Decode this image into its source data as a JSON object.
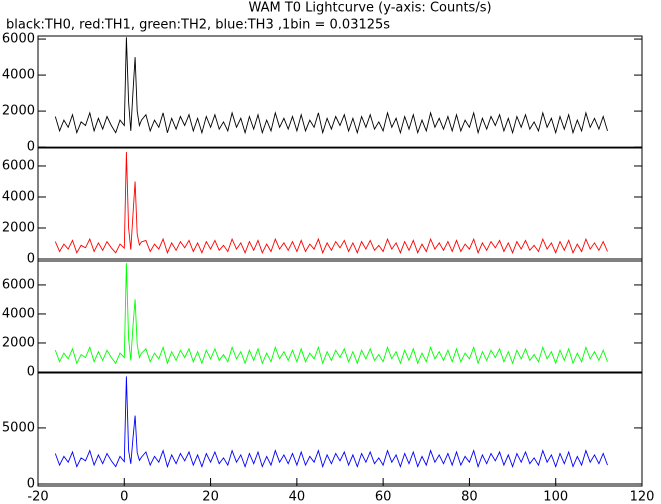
{
  "title": "WAM T0 Lightcurve (y-axis: Counts/s)",
  "subtitle": "black:TH0, red:TH1, green:TH2, blue:TH3 ,1bin = 0.03125s",
  "chart_data": [
    {
      "type": "line",
      "x": [
        -16,
        -15,
        -14,
        -13,
        -12,
        -11,
        -10,
        -9,
        -8,
        -7,
        -6,
        -5,
        -4,
        -3,
        -2,
        -1,
        0,
        0.5,
        1,
        1.5,
        2,
        2.5,
        3,
        3.5,
        4,
        5,
        6,
        7,
        8,
        9,
        10,
        11,
        12,
        13,
        14,
        15,
        16,
        17,
        18,
        19,
        20,
        21,
        22,
        23,
        24,
        25,
        26,
        27,
        28,
        29,
        30,
        31,
        32,
        33,
        34,
        35,
        36,
        37,
        38,
        39,
        40,
        41,
        42,
        43,
        44,
        45,
        46,
        47,
        48,
        49,
        50,
        51,
        52,
        53,
        54,
        55,
        56,
        57,
        58,
        59,
        60,
        61,
        62,
        63,
        64,
        65,
        66,
        67,
        68,
        69,
        70,
        71,
        72,
        73,
        74,
        75,
        76,
        77,
        78,
        79,
        80,
        81,
        82,
        83,
        84,
        85,
        86,
        87,
        88,
        89,
        90,
        91,
        92,
        93,
        94,
        95,
        96,
        97,
        98,
        99,
        100,
        101,
        102,
        103,
        104,
        105,
        106,
        107,
        108,
        109,
        110,
        111,
        112
      ],
      "xlim": [
        -20,
        120
      ],
      "ylim": [
        -50,
        6170
      ],
      "yticks": [
        0,
        2000,
        4000,
        6000
      ],
      "series": [
        {
          "color": "#000000",
          "values": [
            1700,
            900,
            1500,
            1100,
            1800,
            800,
            1400,
            1200,
            1900,
            900,
            1600,
            1000,
            1700,
            1200,
            800,
            1500,
            1200,
            6100,
            2500,
            900,
            3000,
            5000,
            2000,
            1200,
            1500,
            1800,
            900,
            1500,
            1100,
            1900,
            800,
            1600,
            1000,
            1700,
            1200,
            1800,
            900,
            1600,
            800,
            1700,
            1100,
            1800,
            1000,
            1400,
            900,
            1900,
            1100,
            1600,
            800,
            1700,
            1000,
            1800,
            800,
            1500,
            900,
            1900,
            1100,
            1600,
            1000,
            1700,
            900,
            1800,
            900,
            1500,
            1100,
            1900,
            800,
            1600,
            1000,
            1700,
            1200,
            1800,
            900,
            1600,
            800,
            1700,
            1100,
            1800,
            1000,
            1400,
            900,
            1900,
            1100,
            1600,
            800,
            1700,
            1000,
            1800,
            800,
            1500,
            900,
            1900,
            1100,
            1600,
            1000,
            1700,
            900,
            1800,
            900,
            1500,
            1100,
            1900,
            800,
            1600,
            1000,
            1700,
            1200,
            1800,
            900,
            1600,
            800,
            1700,
            1100,
            1800,
            1000,
            1400,
            900,
            1900,
            1100,
            1600,
            800,
            1700,
            1000,
            1800,
            800,
            1500,
            900,
            1900,
            1100,
            1600,
            1000,
            1700,
            900
          ]
        }
      ]
    },
    {
      "type": "line",
      "x": [
        -16,
        -15,
        -14,
        -13,
        -12,
        -11,
        -10,
        -9,
        -8,
        -7,
        -6,
        -5,
        -4,
        -3,
        -2,
        -1,
        0,
        0.5,
        1,
        1.5,
        2,
        2.5,
        3,
        3.5,
        4,
        5,
        6,
        7,
        8,
        9,
        10,
        11,
        12,
        13,
        14,
        15,
        16,
        17,
        18,
        19,
        20,
        21,
        22,
        23,
        24,
        25,
        26,
        27,
        28,
        29,
        30,
        31,
        32,
        33,
        34,
        35,
        36,
        37,
        38,
        39,
        40,
        41,
        42,
        43,
        44,
        45,
        46,
        47,
        48,
        49,
        50,
        51,
        52,
        53,
        54,
        55,
        56,
        57,
        58,
        59,
        60,
        61,
        62,
        63,
        64,
        65,
        66,
        67,
        68,
        69,
        70,
        71,
        72,
        73,
        74,
        75,
        76,
        77,
        78,
        79,
        80,
        81,
        82,
        83,
        84,
        85,
        86,
        87,
        88,
        89,
        90,
        91,
        92,
        93,
        94,
        95,
        96,
        97,
        98,
        99,
        100,
        101,
        102,
        103,
        104,
        105,
        106,
        107,
        108,
        109,
        110,
        111,
        112
      ],
      "xlim": [
        -20,
        120
      ],
      "ylim": [
        -130,
        7160
      ],
      "yticks": [
        0,
        2000,
        4000,
        6000
      ],
      "series": [
        {
          "color": "#ff0000",
          "values": [
            1120,
            480,
            960,
            640,
            1200,
            400,
            880,
            720,
            1280,
            480,
            1040,
            560,
            1120,
            720,
            400,
            960,
            700,
            6900,
            2000,
            600,
            2800,
            5000,
            1600,
            900,
            1100,
            1200,
            480,
            960,
            640,
            1280,
            400,
            1040,
            560,
            1120,
            720,
            1200,
            480,
            1040,
            400,
            1120,
            640,
            1200,
            560,
            880,
            480,
            1280,
            640,
            1040,
            400,
            1120,
            560,
            1200,
            400,
            960,
            480,
            1280,
            640,
            1040,
            560,
            1120,
            480,
            1200,
            480,
            960,
            640,
            1280,
            400,
            1040,
            560,
            1120,
            720,
            1200,
            480,
            1040,
            400,
            1120,
            640,
            1200,
            560,
            880,
            480,
            1280,
            640,
            1040,
            400,
            1120,
            560,
            1200,
            400,
            960,
            480,
            1280,
            640,
            1040,
            560,
            1120,
            480,
            1200,
            480,
            960,
            640,
            1280,
            400,
            1040,
            560,
            1120,
            720,
            1200,
            480,
            1040,
            400,
            1120,
            640,
            1200,
            560,
            880,
            480,
            1280,
            640,
            1040,
            400,
            1120,
            560,
            1200,
            400,
            960,
            480,
            1280,
            640,
            1040,
            560,
            1120,
            480
          ]
        }
      ]
    },
    {
      "type": "line",
      "x": [
        -16,
        -15,
        -14,
        -13,
        -12,
        -11,
        -10,
        -9,
        -8,
        -7,
        -6,
        -5,
        -4,
        -3,
        -2,
        -1,
        0,
        0.5,
        1,
        1.5,
        2,
        2.5,
        3,
        3.5,
        4,
        5,
        6,
        7,
        8,
        9,
        10,
        11,
        12,
        13,
        14,
        15,
        16,
        17,
        18,
        19,
        20,
        21,
        22,
        23,
        24,
        25,
        26,
        27,
        28,
        29,
        30,
        31,
        32,
        33,
        34,
        35,
        36,
        37,
        38,
        39,
        40,
        41,
        42,
        43,
        44,
        45,
        46,
        47,
        48,
        49,
        50,
        51,
        52,
        53,
        54,
        55,
        56,
        57,
        58,
        59,
        60,
        61,
        62,
        63,
        64,
        65,
        66,
        67,
        68,
        69,
        70,
        71,
        72,
        73,
        74,
        75,
        76,
        77,
        78,
        79,
        80,
        81,
        82,
        83,
        84,
        85,
        86,
        87,
        88,
        89,
        90,
        91,
        92,
        93,
        94,
        95,
        96,
        97,
        98,
        99,
        100,
        101,
        102,
        103,
        104,
        105,
        106,
        107,
        108,
        109,
        110,
        111,
        112
      ],
      "xlim": [
        -20,
        120
      ],
      "ylim": [
        -70,
        7650
      ],
      "yticks": [
        0,
        2000,
        4000,
        6000
      ],
      "series": [
        {
          "color": "#00ff00",
          "values": [
            1500,
            700,
            1300,
            900,
            1600,
            600,
            1200,
            1000,
            1700,
            700,
            1400,
            800,
            1500,
            1000,
            600,
            1300,
            1000,
            7500,
            2300,
            800,
            3100,
            5000,
            1900,
            1000,
            1300,
            1600,
            700,
            1300,
            900,
            1700,
            600,
            1400,
            800,
            1500,
            1000,
            1600,
            700,
            1400,
            600,
            1500,
            900,
            1600,
            800,
            1200,
            700,
            1700,
            900,
            1400,
            600,
            1500,
            800,
            1600,
            600,
            1300,
            700,
            1700,
            900,
            1400,
            800,
            1500,
            700,
            1600,
            700,
            1300,
            900,
            1700,
            600,
            1400,
            800,
            1500,
            1000,
            1600,
            700,
            1400,
            600,
            1500,
            900,
            1600,
            800,
            1200,
            700,
            1700,
            900,
            1400,
            600,
            1500,
            800,
            1600,
            600,
            1300,
            700,
            1700,
            900,
            1400,
            800,
            1500,
            700,
            1600,
            700,
            1300,
            900,
            1700,
            600,
            1400,
            800,
            1500,
            1000,
            1600,
            700,
            1400,
            600,
            1500,
            900,
            1600,
            800,
            1200,
            700,
            1700,
            900,
            1400,
            600,
            1500,
            800,
            1600,
            600,
            1300,
            700,
            1700,
            900,
            1400,
            800,
            1500,
            700
          ]
        }
      ]
    },
    {
      "type": "line",
      "x": [
        -16,
        -15,
        -14,
        -13,
        -12,
        -11,
        -10,
        -9,
        -8,
        -7,
        -6,
        -5,
        -4,
        -3,
        -2,
        -1,
        0,
        0.5,
        1,
        1.5,
        2,
        2.5,
        3,
        3.5,
        4,
        5,
        6,
        7,
        8,
        9,
        10,
        11,
        12,
        13,
        14,
        15,
        16,
        17,
        18,
        19,
        20,
        21,
        22,
        23,
        24,
        25,
        26,
        27,
        28,
        29,
        30,
        31,
        32,
        33,
        34,
        35,
        36,
        37,
        38,
        39,
        40,
        41,
        42,
        43,
        44,
        45,
        46,
        47,
        48,
        49,
        50,
        51,
        52,
        53,
        54,
        55,
        56,
        57,
        58,
        59,
        60,
        61,
        62,
        63,
        64,
        65,
        66,
        67,
        68,
        69,
        70,
        71,
        72,
        73,
        74,
        75,
        76,
        77,
        78,
        79,
        80,
        81,
        82,
        83,
        84,
        85,
        86,
        87,
        88,
        89,
        90,
        91,
        92,
        93,
        94,
        95,
        96,
        97,
        98,
        99,
        100,
        101,
        102,
        103,
        104,
        105,
        106,
        107,
        108,
        109,
        110,
        111,
        112
      ],
      "xlim": [
        -20,
        120
      ],
      "ylim": [
        -180,
        9900
      ],
      "yticks": [
        0,
        5000
      ],
      "xticks": [
        -20,
        0,
        20,
        40,
        60,
        80,
        100,
        120
      ],
      "series": [
        {
          "color": "#0000ff",
          "values": [
            2720,
            1680,
            2460,
            1940,
            2850,
            1550,
            2330,
            2070,
            2980,
            1680,
            2590,
            1810,
            2720,
            2070,
            1550,
            2460,
            2000,
            9600,
            3000,
            1800,
            4000,
            6100,
            2800,
            2100,
            2400,
            2850,
            1680,
            2460,
            1940,
            2980,
            1550,
            2590,
            1810,
            2720,
            2070,
            2850,
            1680,
            2590,
            1550,
            2720,
            1940,
            2850,
            1810,
            2330,
            1680,
            2980,
            1940,
            2590,
            1550,
            2720,
            1810,
            2850,
            1550,
            2460,
            1680,
            2980,
            1940,
            2590,
            1810,
            2720,
            1680,
            2850,
            1680,
            2460,
            1940,
            2980,
            1550,
            2590,
            1810,
            2720,
            2070,
            2850,
            1680,
            2590,
            1550,
            2720,
            1940,
            2850,
            1810,
            2330,
            1680,
            2980,
            1940,
            2590,
            1550,
            2720,
            1810,
            2850,
            1550,
            2460,
            1680,
            2980,
            1940,
            2590,
            1810,
            2720,
            1680,
            2850,
            1680,
            2460,
            1940,
            2980,
            1550,
            2590,
            1810,
            2720,
            2070,
            2850,
            1680,
            2590,
            1550,
            2720,
            1940,
            2850,
            1810,
            2330,
            1680,
            2980,
            1940,
            2590,
            1550,
            2720,
            1810,
            2850,
            1550,
            2460,
            1680,
            2980,
            1940,
            2590,
            1810,
            2720,
            1680
          ]
        }
      ]
    }
  ]
}
